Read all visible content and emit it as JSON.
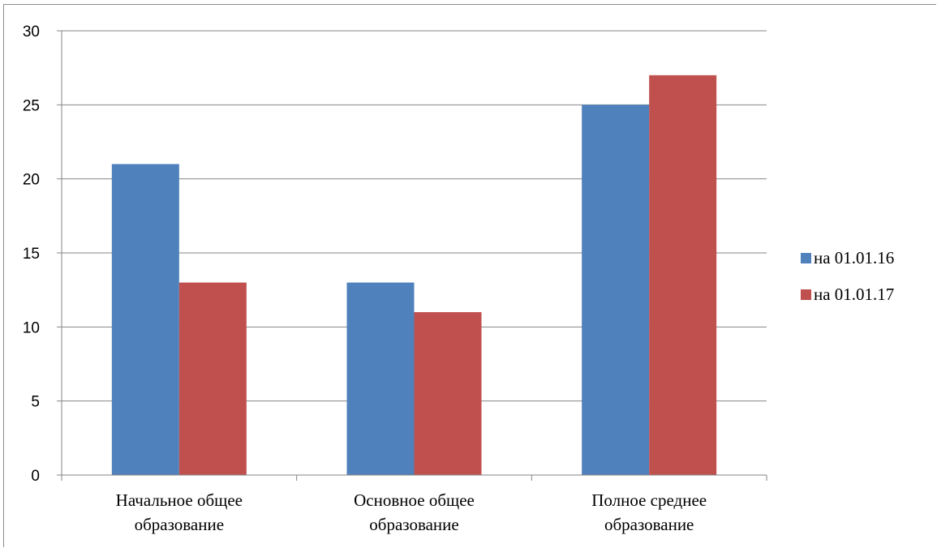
{
  "chart_data": {
    "type": "bar",
    "categories": [
      [
        "Начальное общее",
        "образование"
      ],
      [
        "Основное общее",
        "образование"
      ],
      [
        "Полное среднее",
        "образование"
      ]
    ],
    "series": [
      {
        "name": "на 01.01.16",
        "color": "#4f81bd",
        "values": [
          21,
          13,
          25
        ]
      },
      {
        "name": "на 01.01.17",
        "color": "#c0504d",
        "values": [
          13,
          11,
          27
        ]
      }
    ],
    "yticks": [
      "0",
      "5",
      "10",
      "15",
      "20",
      "25",
      "30"
    ],
    "ylim": [
      0,
      30
    ],
    "grid": true,
    "legend": "right"
  }
}
